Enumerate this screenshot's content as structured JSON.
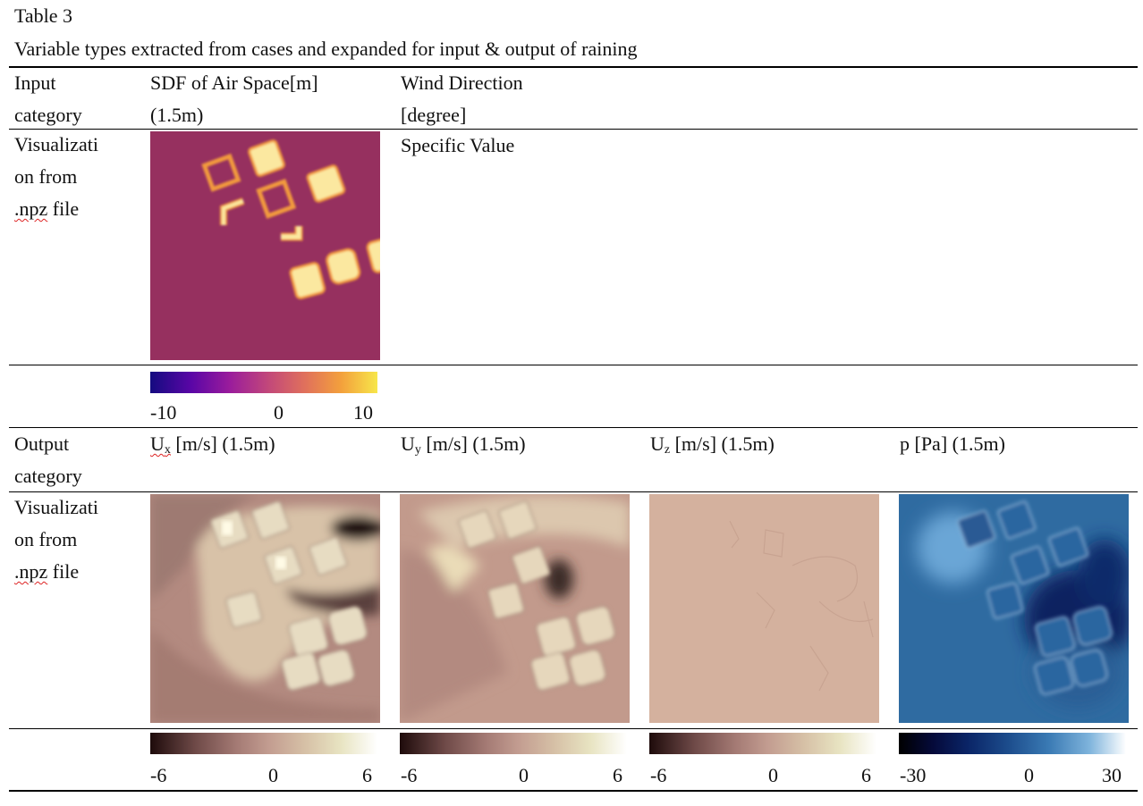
{
  "caption": {
    "label": "Table 3",
    "title": "Variable types extracted from cases and expanded for input & output of raining"
  },
  "input_row": {
    "category_line1": "Input",
    "category_line2": "category",
    "sdf_line1": "SDF of Air Space[m]",
    "sdf_line2": "(1.5m)",
    "wind_line1": "Wind Direction",
    "wind_line2": "[degree]"
  },
  "input_vis_row": {
    "label_line1": "Visualizati",
    "label_line2": "on from",
    "label_line3_prefix": ".npz",
    "label_line3_suffix": " file",
    "specific_value": "Specific Value"
  },
  "input_colorbar": {
    "colormap": "plasma",
    "ticks": [
      "-10",
      "0",
      "10"
    ]
  },
  "output_row": {
    "category_line1": "Output",
    "category_line2": "category",
    "ux": {
      "sym": "U",
      "sub": "x",
      "rest": " [m/s] (1.5m)"
    },
    "uy": {
      "sym": "U",
      "sub": "y",
      "rest": " [m/s] (1.5m)"
    },
    "uz": {
      "sym": "U",
      "sub": "z",
      "rest": " [m/s] (1.5m)"
    },
    "p": "p [Pa] (1.5m)"
  },
  "output_vis_row": {
    "label_line1": "Visualizati",
    "label_line2": "on from",
    "label_line3_prefix": ".npz",
    "label_line3_suffix": " file"
  },
  "output_colorbars": [
    {
      "colormap": "pink",
      "ticks": [
        "-6",
        "0",
        "6"
      ]
    },
    {
      "colormap": "pink",
      "ticks": [
        "-6",
        "0",
        "6"
      ]
    },
    {
      "colormap": "pink",
      "ticks": [
        "-6",
        "0",
        "6"
      ]
    },
    {
      "colormap": "blues",
      "ticks": [
        "-30",
        "0",
        "30"
      ]
    }
  ],
  "colors": {
    "sdf_background": "#96305f",
    "building_fill": "#fbe8a0",
    "building_edge": "#f29a3c",
    "pink_mid": "#c2a198",
    "uz_flat": "#d4b19e",
    "pressure_base": "#2d6aa0",
    "pressure_dark": "#08205a"
  }
}
